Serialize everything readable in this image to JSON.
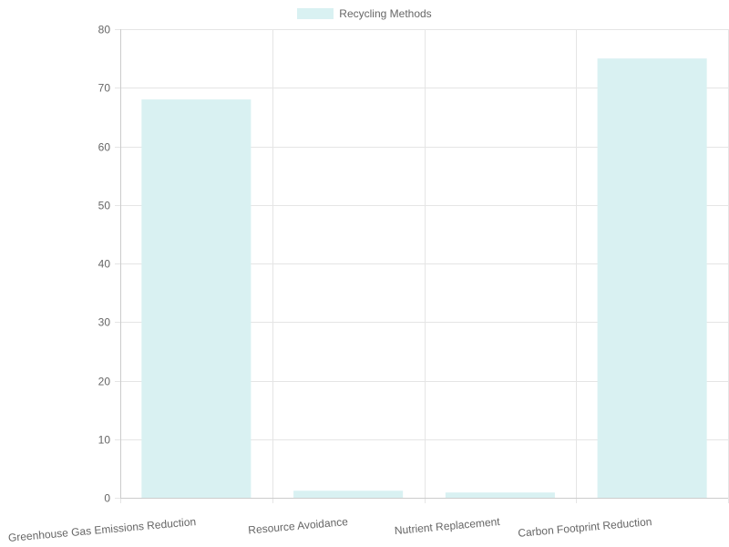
{
  "legend": {
    "label": "Recycling Methods",
    "color": "#d9f1f2"
  },
  "colors": {
    "bar_fill": "#d9f1f2",
    "grid": "#e5e5e5",
    "axis": "#cccccc",
    "text": "#666666"
  },
  "chart_data": {
    "type": "bar",
    "title": "",
    "xlabel": "",
    "ylabel": "",
    "categories": [
      "Greenhouse Gas Emissions Reduction",
      "Resource Avoidance",
      "Nutrient Replacement",
      "Carbon Footprint Reduction"
    ],
    "series": [
      {
        "name": "Recycling Methods",
        "values": [
          68,
          1.2,
          0.9,
          75
        ]
      }
    ],
    "ylim": [
      0,
      80
    ],
    "yticks": [
      0,
      10,
      20,
      30,
      40,
      50,
      60,
      70,
      80
    ],
    "grid": true,
    "legend_position": "top"
  }
}
